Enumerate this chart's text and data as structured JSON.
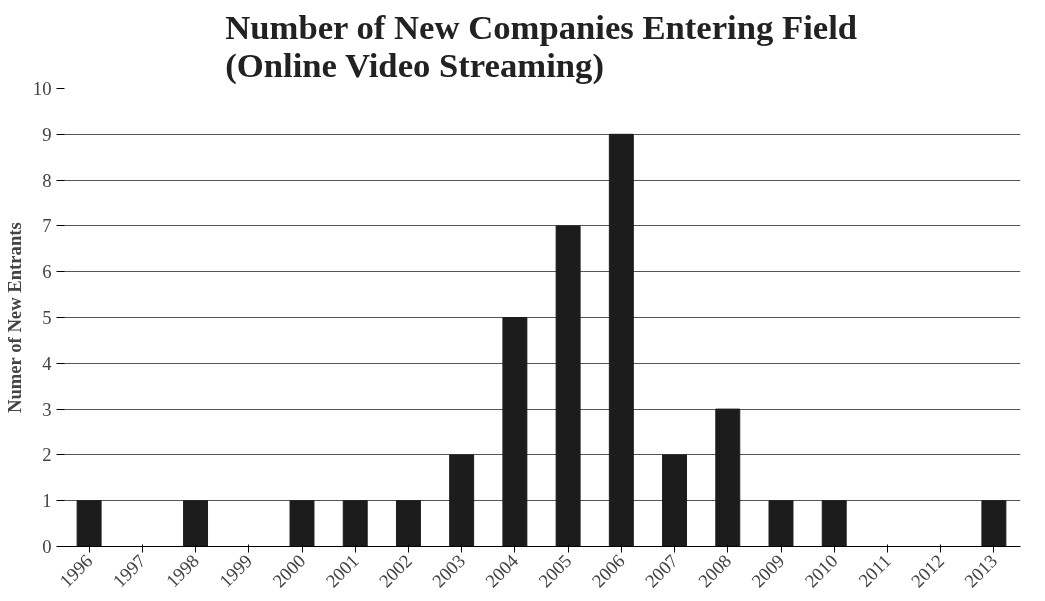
{
  "chart_data": {
    "type": "bar",
    "title": "Number of New Companies Entering Field\n(Online Video Streaming)",
    "ylabel": "Numer of New Entrants",
    "categories": [
      "1996",
      "1997",
      "1998",
      "1999",
      "2000",
      "2001",
      "2002",
      "2003",
      "2004",
      "2005",
      "2006",
      "2007",
      "2008",
      "2009",
      "2010",
      "2011",
      "2012",
      "2013"
    ],
    "values": [
      1,
      0,
      1,
      0,
      1,
      1,
      1,
      2,
      5,
      7,
      9,
      2,
      3,
      1,
      1,
      0,
      0,
      1
    ],
    "color": "#1c1c1c",
    "ylim": [
      0,
      10
    ],
    "yticks": [
      0,
      1,
      2,
      3,
      4,
      5,
      6,
      7,
      8,
      9,
      10
    ],
    "grid": "y"
  }
}
